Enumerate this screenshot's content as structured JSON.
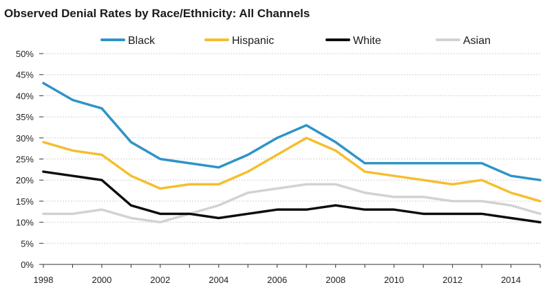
{
  "chart_data": {
    "type": "line",
    "title": "Observed Denial Rates by Race/Ethnicity: All Channels",
    "xlabel": "",
    "ylabel": "",
    "x": [
      1998,
      1999,
      2000,
      2001,
      2002,
      2003,
      2004,
      2005,
      2006,
      2007,
      2008,
      2009,
      2010,
      2011,
      2012,
      2013,
      2014,
      2015
    ],
    "xlim": [
      1998,
      2015
    ],
    "xticks": [
      1998,
      2000,
      2002,
      2004,
      2006,
      2008,
      2010,
      2012,
      2014
    ],
    "xtick_labels": [
      "1998",
      "2000",
      "2002",
      "2004",
      "2006",
      "2008",
      "2010",
      "2012",
      "2014"
    ],
    "ylim": [
      0,
      50
    ],
    "yticks": [
      0,
      5,
      10,
      15,
      20,
      25,
      30,
      35,
      40,
      45,
      50
    ],
    "ytick_labels": [
      "0%",
      "5%",
      "10%",
      "15%",
      "20%",
      "25%",
      "30%",
      "35%",
      "40%",
      "45%",
      "50%"
    ],
    "grid": true,
    "legend_position": "top",
    "series": [
      {
        "name": "Black",
        "color": "#2e93c7",
        "values": [
          43,
          39,
          37,
          29,
          25,
          24,
          23,
          26,
          30,
          33,
          29,
          24,
          24,
          24,
          24,
          24,
          21,
          20
        ]
      },
      {
        "name": "Hispanic",
        "color": "#f5be2d",
        "values": [
          29,
          27,
          26,
          21,
          18,
          19,
          19,
          22,
          26,
          30,
          27,
          22,
          21,
          20,
          19,
          20,
          17,
          15
        ]
      },
      {
        "name": "White",
        "color": "#0d0d0d",
        "values": [
          22,
          21,
          20,
          14,
          12,
          12,
          11,
          12,
          13,
          13,
          14,
          13,
          13,
          12,
          12,
          12,
          11,
          10
        ]
      },
      {
        "name": "Asian",
        "color": "#d2d2d2",
        "values": [
          12,
          12,
          13,
          11,
          10,
          12,
          14,
          17,
          18,
          19,
          19,
          17,
          16,
          16,
          15,
          15,
          14,
          12
        ]
      }
    ]
  }
}
